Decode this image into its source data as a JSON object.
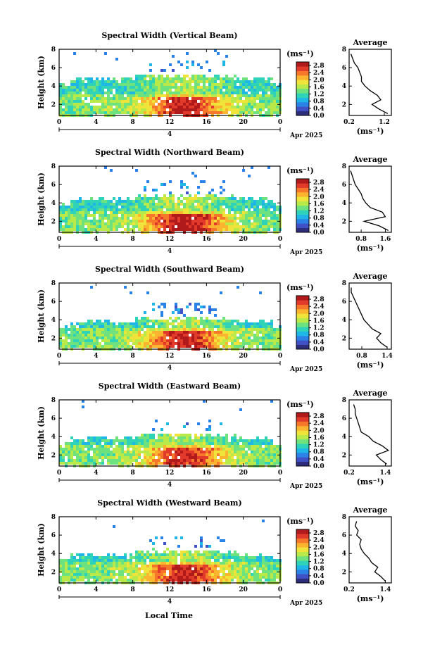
{
  "figure": {
    "xlabel": "Local Time",
    "date_label": "Apr 2025",
    "day_label": "4"
  },
  "colorscale": {
    "stops": [
      "#2e2d7c",
      "#3f51c4",
      "#2b83e8",
      "#1fb7e6",
      "#2fd3b8",
      "#6ee27f",
      "#b9ea4a",
      "#f0e33a",
      "#fbb430",
      "#f7772a",
      "#e23a2a",
      "#b01a1a"
    ]
  },
  "chart_data": [
    {
      "type": "heatmap",
      "title": "Spectral Width (Vertical Beam)",
      "ylabel": "Height (km)",
      "x_ticks": [
        "0",
        "4",
        "8",
        "12",
        "16",
        "20",
        "0"
      ],
      "xlim": [
        0,
        24
      ],
      "y_ticks": [
        "2",
        "4",
        "6",
        "8"
      ],
      "ylim": [
        0.8,
        8
      ],
      "colorbar": {
        "unit": "(ms⁻¹)",
        "ticks": [
          "0.0",
          "0.4",
          "0.8",
          "1.2",
          "1.6",
          "2.0",
          "2.4",
          "2.8"
        ],
        "range": [
          0,
          3.0
        ]
      },
      "profile": {
        "title": "Average",
        "xlabel": "(ms⁻¹)",
        "x_ticks": [
          "0.2",
          "1.2"
        ],
        "xlim": [
          0.2,
          1.4
        ],
        "y_ticks": [
          "2",
          "4",
          "6",
          "8"
        ],
        "ylim": [
          0.8,
          8
        ],
        "heights": [
          1.0,
          1.5,
          2.0,
          2.5,
          3.0,
          3.5,
          4.0,
          4.5,
          5.0,
          5.5,
          6.0,
          6.5,
          7.0,
          7.5
        ],
        "values": [
          1.3,
          1.05,
          0.85,
          1.1,
          1.0,
          0.8,
          0.65,
          0.55,
          0.55,
          0.5,
          0.45,
          0.35,
          0.3,
          0.25
        ]
      },
      "layer": {
        "top": 4.8,
        "intensity": 1.0
      }
    },
    {
      "type": "heatmap",
      "title": "Spectral Width (Northward Beam)",
      "ylabel": "Height (km)",
      "x_ticks": [
        "0",
        "4",
        "8",
        "12",
        "16",
        "20",
        "0"
      ],
      "xlim": [
        0,
        24
      ],
      "y_ticks": [
        "2",
        "4",
        "6",
        "8"
      ],
      "ylim": [
        0.8,
        8
      ],
      "colorbar": {
        "unit": "(ms⁻¹)",
        "ticks": [
          "0.0",
          "0.4",
          "0.8",
          "1.2",
          "1.6",
          "2.0",
          "2.4",
          "2.8"
        ],
        "range": [
          0,
          3.0
        ]
      },
      "profile": {
        "title": "Average",
        "xlabel": "(ms⁻¹)",
        "x_ticks": [
          "0.8",
          "1.6"
        ],
        "xlim": [
          0.4,
          1.8
        ],
        "y_ticks": [
          "2",
          "4",
          "6",
          "8"
        ],
        "ylim": [
          0.8,
          8
        ],
        "heights": [
          1.0,
          1.5,
          2.0,
          2.5,
          3.0,
          3.5,
          4.0,
          4.5,
          5.0,
          5.5,
          6.0,
          6.5,
          7.0,
          7.5
        ],
        "values": [
          1.7,
          1.4,
          0.9,
          1.6,
          1.5,
          1.1,
          0.95,
          0.85,
          0.8,
          0.7,
          0.6,
          0.55,
          0.5,
          0.45
        ]
      },
      "layer": {
        "top": 4.4,
        "intensity": 1.1
      }
    },
    {
      "type": "heatmap",
      "title": "Spectral Width (Southward Beam)",
      "ylabel": "Height (km)",
      "x_ticks": [
        "0",
        "4",
        "8",
        "12",
        "16",
        "20",
        "0"
      ],
      "xlim": [
        0,
        24
      ],
      "y_ticks": [
        "2",
        "4",
        "6",
        "8"
      ],
      "ylim": [
        0.8,
        8
      ],
      "colorbar": {
        "unit": "(ms⁻¹)",
        "ticks": [
          "0.0",
          "0.4",
          "0.8",
          "1.2",
          "1.6",
          "2.0",
          "2.4",
          "2.8"
        ],
        "range": [
          0,
          3.0
        ]
      },
      "profile": {
        "title": "Average",
        "xlabel": "(ms⁻¹)",
        "x_ticks": [
          "0.8",
          "1.4"
        ],
        "xlim": [
          0.5,
          1.5
        ],
        "y_ticks": [
          "2",
          "4",
          "6",
          "8"
        ],
        "ylim": [
          0.8,
          8
        ],
        "heights": [
          1.0,
          1.5,
          2.0,
          2.5,
          3.0,
          3.5,
          4.0,
          4.5,
          5.0,
          5.5,
          6.0,
          6.5,
          7.0,
          7.5
        ],
        "values": [
          1.4,
          1.25,
          1.15,
          1.25,
          1.05,
          0.95,
          0.85,
          0.8,
          0.75,
          0.7,
          0.65,
          0.6,
          0.55,
          0.55
        ]
      },
      "layer": {
        "top": 3.8,
        "intensity": 1.0
      }
    },
    {
      "type": "heatmap",
      "title": "Spectral Width (Eastward Beam)",
      "ylabel": "Height (km)",
      "x_ticks": [
        "0",
        "4",
        "8",
        "12",
        "16",
        "20",
        "0"
      ],
      "xlim": [
        0,
        24
      ],
      "y_ticks": [
        "2",
        "4",
        "6",
        "8"
      ],
      "ylim": [
        0.8,
        8
      ],
      "colorbar": {
        "unit": "(ms⁻¹)",
        "ticks": [
          "0.0",
          "0.4",
          "0.8",
          "1.2",
          "1.6",
          "2.0",
          "2.4",
          "2.8"
        ],
        "range": [
          0,
          3.0
        ]
      },
      "profile": {
        "title": "Average",
        "xlabel": "(ms⁻¹)",
        "x_ticks": [
          "0.2",
          "1.4"
        ],
        "xlim": [
          0.2,
          1.6
        ],
        "y_ticks": [
          "2",
          "4",
          "6",
          "8"
        ],
        "ylim": [
          0.8,
          8
        ],
        "heights": [
          1.0,
          1.5,
          2.0,
          2.5,
          3.0,
          3.5,
          4.0,
          4.5,
          5.0,
          5.5,
          6.0,
          6.5,
          7.0,
          7.5
        ],
        "values": [
          1.45,
          1.25,
          1.1,
          1.5,
          1.3,
          1.0,
          0.85,
          0.6,
          0.55,
          0.5,
          0.45,
          0.4,
          0.4,
          0.35
        ]
      },
      "layer": {
        "top": 3.9,
        "intensity": 0.95
      }
    },
    {
      "type": "heatmap",
      "title": "Spectral Width (Westward Beam)",
      "ylabel": "Height (km)",
      "x_ticks": [
        "0",
        "4",
        "8",
        "12",
        "16",
        "20",
        "0"
      ],
      "xlim": [
        0,
        24
      ],
      "y_ticks": [
        "2",
        "4",
        "6",
        "8"
      ],
      "ylim": [
        0.8,
        8
      ],
      "colorbar": {
        "unit": "(ms⁻¹)",
        "ticks": [
          "0.0",
          "0.4",
          "0.8",
          "1.2",
          "1.6",
          "2.0",
          "2.4",
          "2.8"
        ],
        "range": [
          0,
          3.0
        ]
      },
      "profile": {
        "title": "Average",
        "xlabel": "(ms⁻¹)",
        "x_ticks": [
          "0.2",
          "1.4"
        ],
        "xlim": [
          0.2,
          1.6
        ],
        "y_ticks": [
          "2",
          "4",
          "6",
          "8"
        ],
        "ylim": [
          0.8,
          8
        ],
        "heights": [
          1.0,
          1.5,
          2.0,
          2.5,
          3.0,
          3.5,
          4.0,
          4.5,
          5.0,
          5.5,
          6.0,
          6.5,
          7.0,
          7.5
        ],
        "values": [
          1.4,
          1.25,
          1.05,
          1.15,
          0.95,
          0.85,
          0.7,
          0.6,
          0.55,
          0.6,
          0.45,
          0.5,
          0.4,
          0.45
        ]
      },
      "layer": {
        "top": 3.9,
        "intensity": 1.0
      }
    }
  ]
}
